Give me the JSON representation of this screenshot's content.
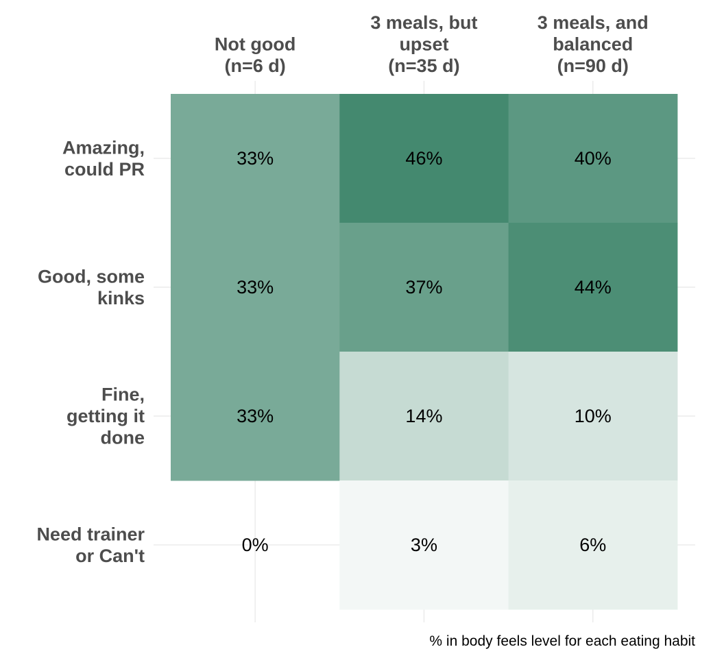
{
  "chart_data": {
    "type": "heatmap",
    "x_categories": [
      [
        "Not good",
        "(n=6 d)"
      ],
      [
        "3 meals, but",
        "upset",
        "(n=35 d)"
      ],
      [
        "3 meals, and",
        "balanced",
        "(n=90 d)"
      ]
    ],
    "y_categories": [
      [
        "Amazing,",
        "could PR"
      ],
      [
        "Good, some",
        "kinks"
      ],
      [
        "Fine,",
        "getting it",
        "done"
      ],
      [
        "Need trainer",
        "or Can't"
      ]
    ],
    "values": [
      [
        33,
        46,
        40
      ],
      [
        33,
        37,
        44
      ],
      [
        33,
        14,
        10
      ],
      [
        0,
        3,
        6
      ]
    ],
    "value_labels": [
      [
        "33%",
        "46%",
        "40%"
      ],
      [
        "33%",
        "37%",
        "44%"
      ],
      [
        "33%",
        "14%",
        "10%"
      ],
      [
        "0%",
        "3%",
        "6%"
      ]
    ],
    "value_range": [
      0,
      46
    ],
    "color_low": "#ffffff",
    "color_high": "#44896f",
    "caption": "% in body feels level for each eating habit",
    "grid": true,
    "legend": "none"
  }
}
